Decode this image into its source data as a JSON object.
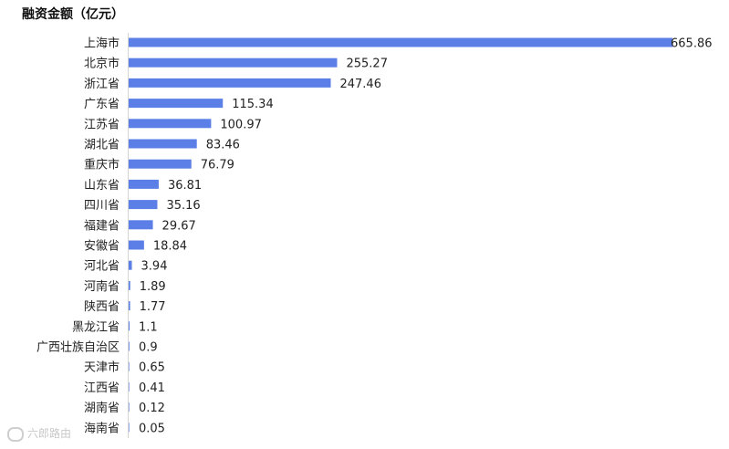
{
  "chart_data": {
    "type": "bar",
    "orientation": "horizontal",
    "title": "融资金额（亿元）",
    "categories": [
      "上海市",
      "北京市",
      "浙江省",
      "广东省",
      "江苏省",
      "湖北省",
      "重庆市",
      "山东省",
      "四川省",
      "福建省",
      "安徽省",
      "河北省",
      "河南省",
      "陕西省",
      "黑龙江省",
      "广西壮族自治区",
      "天津市",
      "江西省",
      "湖南省",
      "海南省"
    ],
    "values": [
      665.86,
      255.27,
      247.46,
      115.34,
      100.97,
      83.46,
      76.79,
      36.81,
      35.16,
      29.67,
      18.84,
      3.94,
      1.89,
      1.77,
      1.1,
      0.9,
      0.65,
      0.41,
      0.12,
      0.05
    ],
    "value_labels": [
      "665.86",
      "255.27",
      "247.46",
      "115.34",
      "100.97",
      "83.46",
      "76.79",
      "36.81",
      "35.16",
      "29.67",
      "18.84",
      "3.94",
      "1.89",
      "1.77",
      "1.1",
      "0.9",
      "0.65",
      "0.41",
      "0.12",
      "0.05"
    ],
    "xlim": [
      0,
      665.86
    ],
    "grid": false,
    "data_labels": true,
    "bar_color": "#5b7fe6"
  },
  "watermark": {
    "text": "六郎路由"
  }
}
